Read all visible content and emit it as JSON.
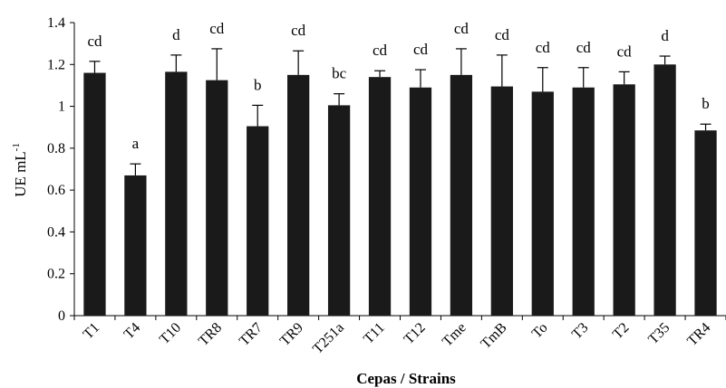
{
  "chart_data": {
    "type": "bar",
    "categories": [
      "T1",
      "T4",
      "T10",
      "TR8",
      "TR7",
      "TR9",
      "T251a",
      "T11",
      "T12",
      "Tme",
      "TmB",
      "To",
      "T3",
      "T2",
      "T35",
      "TR4"
    ],
    "values": [
      1.16,
      0.67,
      1.165,
      1.125,
      0.905,
      1.15,
      1.005,
      1.14,
      1.09,
      1.15,
      1.095,
      1.07,
      1.09,
      1.105,
      1.2,
      0.885
    ],
    "errors": [
      0.055,
      0.055,
      0.08,
      0.15,
      0.1,
      0.115,
      0.055,
      0.03,
      0.085,
      0.125,
      0.15,
      0.115,
      0.095,
      0.06,
      0.04,
      0.03
    ],
    "significance_letters": [
      "cd",
      "a",
      "d",
      "cd",
      "b",
      "cd",
      "bc",
      "cd",
      "cd",
      "cd",
      "cd",
      "cd",
      "cd",
      "cd",
      "d",
      "b"
    ],
    "ylabel_main": "UE mL",
    "ylabel_sup": "-1",
    "xlabel": "Cepas / Strains",
    "ylim": [
      0,
      1.4
    ],
    "yticks": [
      "0",
      "0.2",
      "0.4",
      "0.6",
      "0.8",
      "1",
      "1.2",
      "1.4"
    ],
    "grid": false,
    "bar_color": "#1a1a1a"
  }
}
